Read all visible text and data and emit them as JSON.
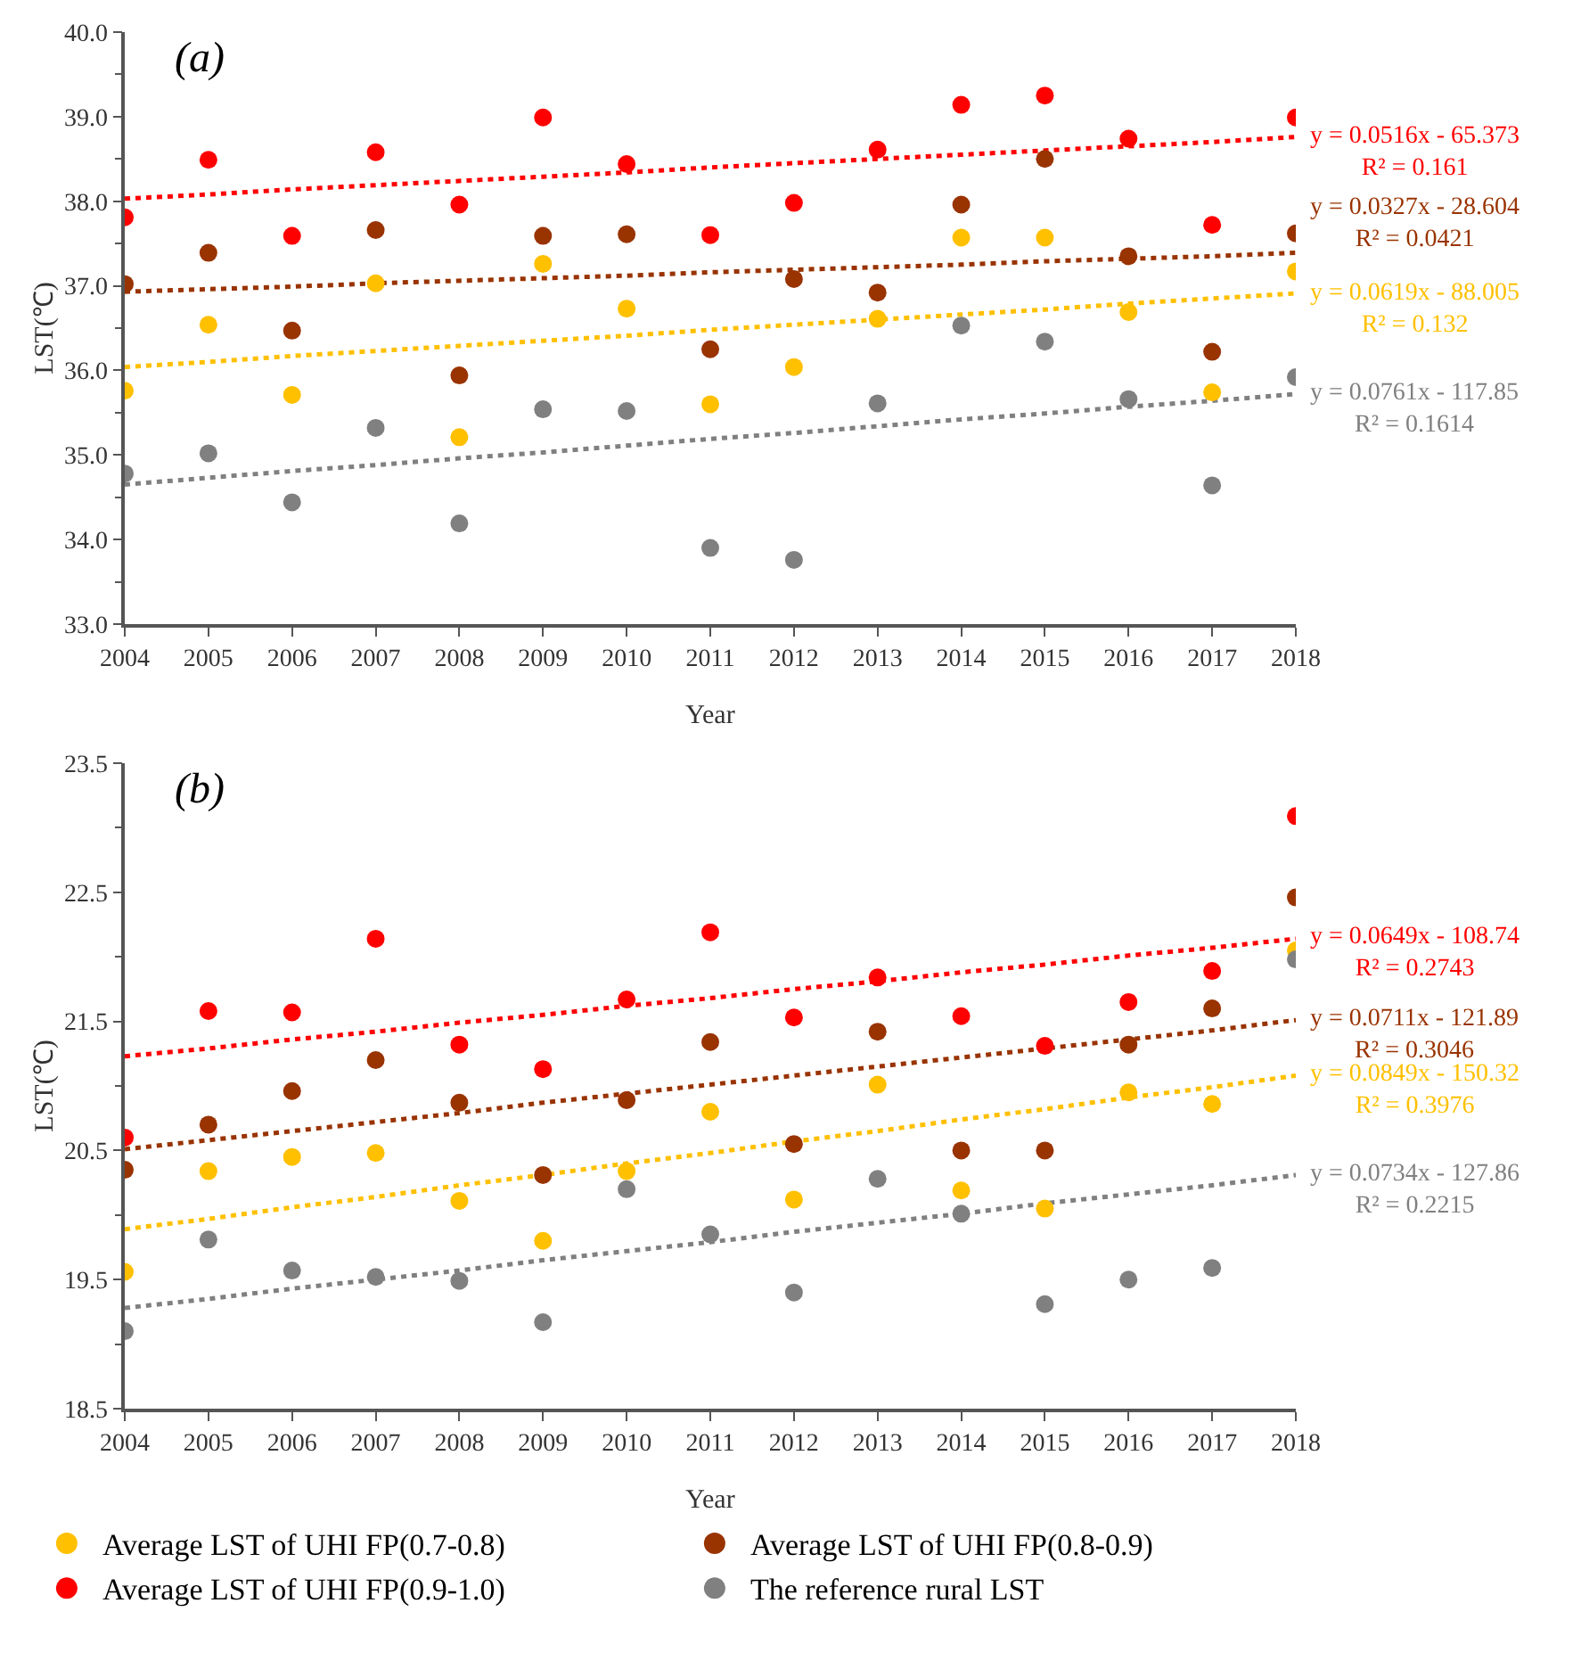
{
  "chart_data": [
    {
      "type": "scatter",
      "title": "(a)",
      "xlabel": "Year",
      "ylabel": "LST(℃)",
      "marker": "circle",
      "grid": false,
      "legend": false,
      "x": [
        2004,
        2005,
        2006,
        2007,
        2008,
        2009,
        2010,
        2011,
        2012,
        2013,
        2014,
        2015,
        2016,
        2017,
        2018
      ],
      "xlim": [
        2004,
        2018
      ],
      "xticks": [
        2004,
        2005,
        2006,
        2007,
        2008,
        2009,
        2010,
        2011,
        2012,
        2013,
        2014,
        2015,
        2016,
        2017,
        2018
      ],
      "ylim": [
        33,
        40
      ],
      "yticks": [
        {
          "value": 33,
          "label": "33.0"
        },
        {
          "value": 34,
          "label": "34.0"
        },
        {
          "value": 35,
          "label": "35.0"
        },
        {
          "value": 36,
          "label": "36.0"
        },
        {
          "value": 37,
          "label": "37.0"
        },
        {
          "value": 38,
          "label": "38.0"
        },
        {
          "value": 39,
          "label": "39.0"
        },
        {
          "value": 40,
          "label": "40.0"
        }
      ],
      "series": [
        {
          "color": "#ffc000",
          "values": [
            35.76,
            36.54,
            35.71,
            37.03,
            35.21,
            37.26,
            36.73,
            35.6,
            36.04,
            36.61,
            37.57,
            37.57,
            36.69,
            35.74,
            37.17
          ]
        },
        {
          "color": "#993300",
          "values": [
            37.02,
            37.39,
            36.47,
            37.66,
            35.94,
            37.59,
            37.61,
            36.25,
            37.08,
            36.92,
            37.96,
            38.5,
            37.35,
            36.22,
            37.62
          ]
        },
        {
          "color": "#ff0000",
          "values": [
            37.81,
            38.49,
            37.59,
            38.58,
            37.96,
            38.99,
            38.44,
            37.6,
            37.98,
            38.61,
            39.14,
            39.25,
            38.74,
            37.72,
            38.99
          ]
        },
        {
          "color": "#808080",
          "values": [
            34.78,
            35.02,
            34.44,
            35.32,
            34.19,
            35.54,
            35.52,
            33.9,
            33.76,
            35.61,
            36.53,
            36.34,
            35.66,
            34.64,
            35.92
          ]
        },
        {
          "type": "line",
          "line_style": "dotted",
          "marker": "none",
          "color": "#ff0000",
          "values": [
            38.03,
            38.08,
            38.14,
            38.19,
            38.24,
            38.29,
            38.34,
            38.4,
            38.45,
            38.5,
            38.55,
            38.6,
            38.65,
            38.7,
            38.76
          ]
        },
        {
          "type": "line",
          "line_style": "dotted",
          "marker": "none",
          "color": "#993300",
          "values": [
            36.93,
            36.96,
            36.99,
            37.03,
            37.06,
            37.09,
            37.12,
            37.16,
            37.19,
            37.22,
            37.25,
            37.29,
            37.32,
            37.35,
            37.39
          ]
        },
        {
          "type": "line",
          "line_style": "dotted",
          "marker": "none",
          "color": "#ffc000",
          "values": [
            36.04,
            36.1,
            36.17,
            36.23,
            36.29,
            36.35,
            36.41,
            36.48,
            36.54,
            36.6,
            36.66,
            36.72,
            36.79,
            36.85,
            36.91
          ]
        },
        {
          "type": "line",
          "line_style": "dotted",
          "marker": "none",
          "color": "#808080",
          "values": [
            34.65,
            34.73,
            34.81,
            34.88,
            34.96,
            35.03,
            35.11,
            35.19,
            35.26,
            35.34,
            35.42,
            35.49,
            35.57,
            35.64,
            35.72
          ]
        }
      ],
      "annotations": [
        "y = 0.0516x - 65.373\nR² = 0.161",
        "y = 0.0327x - 28.604\nR² = 0.0421",
        "y = 0.0619x - 88.005\nR² = 0.132",
        "y = 0.0761x - 117.85\nR² = 0.1614"
      ]
    },
    {
      "type": "scatter",
      "title": "(b)",
      "xlabel": "Year",
      "ylabel": "LST(℃)",
      "marker": "circle",
      "grid": false,
      "legend": "bottom",
      "x": [
        2004,
        2005,
        2006,
        2007,
        2008,
        2009,
        2010,
        2011,
        2012,
        2013,
        2014,
        2015,
        2016,
        2017,
        2018
      ],
      "xlim": [
        2004,
        2018
      ],
      "xticks": [
        2004,
        2005,
        2006,
        2007,
        2008,
        2009,
        2010,
        2011,
        2012,
        2013,
        2014,
        2015,
        2016,
        2017,
        2018
      ],
      "ylim": [
        18.5,
        23.5
      ],
      "yticks": [
        18.5,
        19.5,
        20.5,
        21.5,
        22.5,
        23.5
      ],
      "series": [
        {
          "name": "Average LST of UHI FP(0.7-0.8)",
          "color": "#ffc000",
          "values": [
            19.56,
            20.34,
            20.45,
            20.48,
            20.11,
            19.8,
            20.34,
            20.8,
            20.12,
            21.01,
            20.19,
            20.05,
            20.95,
            20.86,
            22.05
          ]
        },
        {
          "name": "Average LST of UHI FP(0.8-0.9)",
          "color": "#993300",
          "values": [
            20.35,
            20.7,
            20.96,
            21.2,
            20.87,
            20.31,
            20.89,
            21.34,
            20.55,
            21.42,
            20.5,
            20.5,
            21.32,
            21.6,
            22.46
          ]
        },
        {
          "name": "Average LST of UHI FP(0.9-1.0)",
          "color": "#ff0000",
          "values": [
            20.6,
            21.58,
            21.57,
            22.14,
            21.32,
            21.13,
            21.67,
            22.19,
            21.53,
            21.84,
            21.54,
            21.31,
            21.65,
            21.89,
            23.09
          ]
        },
        {
          "name": "The reference rural LST",
          "color": "#808080",
          "values": [
            19.1,
            19.81,
            19.57,
            19.52,
            19.49,
            19.17,
            20.2,
            19.85,
            19.4,
            20.28,
            20.01,
            19.31,
            19.5,
            19.59,
            21.98
          ]
        },
        {
          "type": "line",
          "line_style": "dotted",
          "marker": "none",
          "color": "#ff0000",
          "values": [
            21.23,
            21.29,
            21.36,
            21.42,
            21.49,
            21.55,
            21.62,
            21.68,
            21.75,
            21.81,
            21.88,
            21.94,
            22.01,
            22.07,
            22.14
          ]
        },
        {
          "type": "line",
          "line_style": "dotted",
          "marker": "none",
          "color": "#993300",
          "values": [
            20.51,
            20.58,
            20.65,
            20.72,
            20.79,
            20.87,
            20.94,
            21.01,
            21.08,
            21.15,
            21.22,
            21.29,
            21.36,
            21.43,
            21.51
          ]
        },
        {
          "type": "line",
          "line_style": "dotted",
          "marker": "none",
          "color": "#ffc000",
          "values": [
            19.89,
            19.97,
            20.06,
            20.14,
            20.23,
            20.31,
            20.4,
            20.48,
            20.57,
            20.65,
            20.74,
            20.82,
            20.91,
            20.99,
            21.08
          ]
        },
        {
          "type": "line",
          "line_style": "dotted",
          "marker": "none",
          "color": "#808080",
          "values": [
            19.28,
            19.35,
            19.43,
            19.5,
            19.57,
            19.65,
            19.72,
            19.79,
            19.87,
            19.94,
            20.01,
            20.09,
            20.16,
            20.23,
            20.31
          ]
        }
      ],
      "annotations": [
        "y = 0.0649x - 108.74\nR² = 0.2743",
        "y = 0.0711x - 121.89\nR² = 0.3046",
        "y = 0.0849x - 150.32\nR² = 0.3976",
        "y = 0.0734x - 127.86\nR² = 0.2215"
      ]
    }
  ]
}
